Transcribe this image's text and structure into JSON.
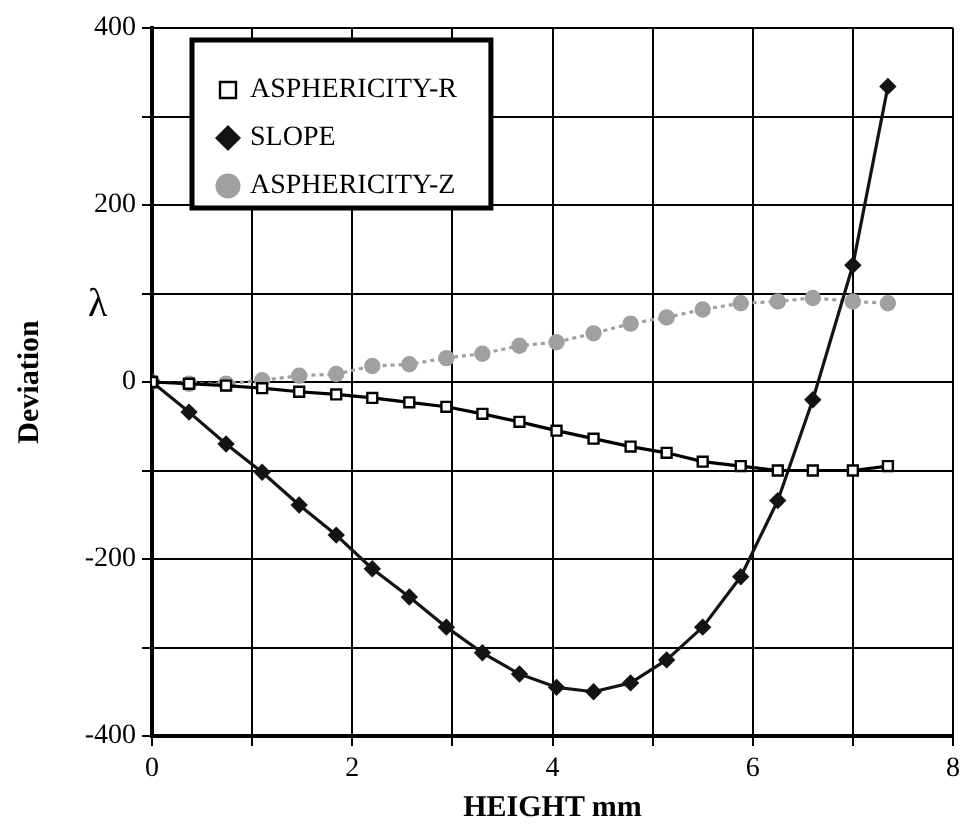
{
  "chart_data": {
    "type": "line",
    "xlabel": "HEIGHT mm",
    "ylabel": "Deviation",
    "annotations": [
      "λ"
    ],
    "x": [
      0,
      0.37,
      0.74,
      1.1,
      1.47,
      1.84,
      2.2,
      2.57,
      2.94,
      3.3,
      3.67,
      4.04,
      4.41,
      4.78,
      5.14,
      5.5,
      5.88,
      6.25,
      6.6,
      7.0,
      7.35
    ],
    "xlim": [
      0,
      8
    ],
    "xticks": [
      0,
      {
        "value": 1,
        "label": null
      },
      2,
      {
        "value": 3,
        "label": null
      },
      4,
      {
        "value": 5,
        "label": null
      },
      6,
      {
        "value": 7,
        "label": null
      },
      8
    ],
    "ylim": [
      -400,
      400
    ],
    "yticks": [
      -400,
      {
        "value": -300,
        "label": null
      },
      -200,
      {
        "value": -100,
        "label": null
      },
      0,
      {
        "value": 100,
        "label": null
      },
      200,
      {
        "value": 300,
        "label": null
      },
      400
    ],
    "grid": true,
    "legend": "top left",
    "series": [
      {
        "name": "ASPHERICITY-R",
        "color": "#000000",
        "marker": "square",
        "line_style": "solid",
        "values": [
          0,
          -2,
          -4,
          -7,
          -11,
          -14,
          -18,
          -23,
          -28,
          -36,
          -45,
          -55,
          -64,
          -73,
          -80,
          -90,
          -95,
          -100,
          -100,
          -100,
          -95
        ]
      },
      {
        "name": "SLOPE",
        "color": "#141414",
        "marker": "diamond",
        "line_style": "solid",
        "values": [
          0,
          -34,
          -70,
          -102,
          -139,
          -173,
          -211,
          -243,
          -277,
          -306,
          -330,
          -345,
          -350,
          -340,
          -314,
          -277,
          -220,
          -134,
          -20,
          132,
          334
        ]
      },
      {
        "name": "ASPHERICITY-Z",
        "color": "#a0a0a0",
        "marker": "circle",
        "line_style": "dotted",
        "values": [
          0,
          -2,
          -2,
          2,
          7,
          9,
          18,
          20,
          27,
          32,
          41,
          45,
          55,
          66,
          73,
          82,
          89,
          91,
          95,
          91,
          89
        ]
      }
    ]
  }
}
